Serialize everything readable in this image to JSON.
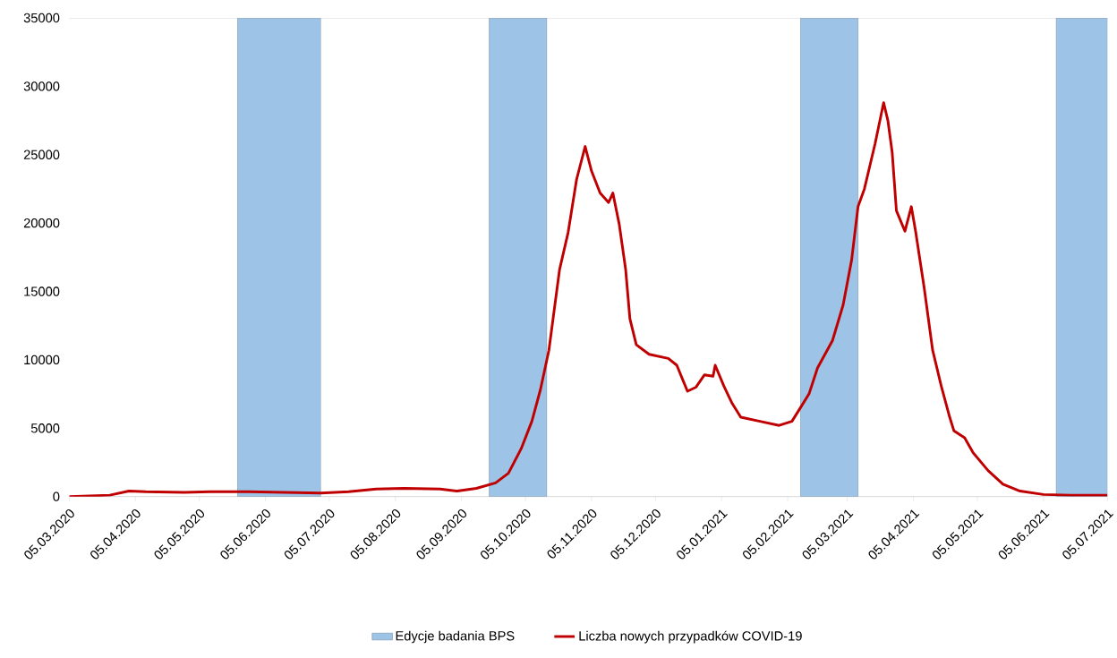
{
  "chart_data": {
    "type": "line",
    "xlim": [
      "2020-03-05",
      "2021-07-05"
    ],
    "ylim": [
      0,
      35000
    ],
    "xticks": [
      {
        "value": "2020-03-05",
        "label": "05.03.2020"
      },
      {
        "value": "2020-04-05",
        "label": "05.04.2020"
      },
      {
        "value": "2020-05-05",
        "label": "05.05.2020"
      },
      {
        "value": "2020-06-05",
        "label": "05.06.2020"
      },
      {
        "value": "2020-07-05",
        "label": "05.07.2020"
      },
      {
        "value": "2020-08-05",
        "label": "05.08.2020"
      },
      {
        "value": "2020-09-05",
        "label": "05.09.2020"
      },
      {
        "value": "2020-10-05",
        "label": "05.10.2020"
      },
      {
        "value": "2020-11-05",
        "label": "05.11.2020"
      },
      {
        "value": "2020-12-05",
        "label": "05.12.2020"
      },
      {
        "value": "2021-01-05",
        "label": "05.01.2021"
      },
      {
        "value": "2021-02-05",
        "label": "05.02.2021"
      },
      {
        "value": "2021-03-05",
        "label": "05.03.2021"
      },
      {
        "value": "2021-04-05",
        "label": "05.04.2021"
      },
      {
        "value": "2021-05-05",
        "label": "05.05.2021"
      },
      {
        "value": "2021-06-05",
        "label": "05.06.2021"
      },
      {
        "value": "2021-07-05",
        "label": "05.07.2021"
      }
    ],
    "yticks": [
      0,
      5000,
      10000,
      15000,
      20000,
      25000,
      30000,
      35000
    ],
    "bands": [
      {
        "axis": "x",
        "from": "2020-05-23",
        "to": "2020-07-01",
        "label": "Edycje badania BPS",
        "color": "#9dc3e6"
      },
      {
        "axis": "x",
        "from": "2020-09-18",
        "to": "2020-10-15",
        "color": "#9dc3e6"
      },
      {
        "axis": "x",
        "from": "2021-02-11",
        "to": "2021-03-10",
        "color": "#9dc3e6"
      },
      {
        "axis": "x",
        "from": "2021-06-11",
        "to": "2021-07-05",
        "color": "#9dc3e6"
      }
    ],
    "series": [
      {
        "name": "Liczba nowych przypadków COVID-19",
        "color": "#c00000",
        "x": [
          "2020-03-05",
          "2020-03-24",
          "2020-04-02",
          "2020-04-10",
          "2020-04-28",
          "2020-05-10",
          "2020-05-28",
          "2020-06-14",
          "2020-07-01",
          "2020-07-14",
          "2020-07-27",
          "2020-08-09",
          "2020-08-26",
          "2020-09-03",
          "2020-09-12",
          "2020-09-21",
          "2020-09-27",
          "2020-10-03",
          "2020-10-08",
          "2020-10-12",
          "2020-10-16",
          "2020-10-21",
          "2020-10-25",
          "2020-10-29",
          "2020-11-02",
          "2020-11-05",
          "2020-11-09",
          "2020-11-13",
          "2020-11-15",
          "2020-11-18",
          "2020-11-21",
          "2020-11-23",
          "2020-11-26",
          "2020-12-02",
          "2020-12-11",
          "2020-12-15",
          "2020-12-20",
          "2020-12-24",
          "2020-12-28",
          "2021-01-01",
          "2021-01-02",
          "2021-01-06",
          "2021-01-10",
          "2021-01-14",
          "2021-01-23",
          "2021-02-01",
          "2021-02-07",
          "2021-02-11",
          "2021-02-15",
          "2021-02-19",
          "2021-02-26",
          "2021-03-03",
          "2021-03-07",
          "2021-03-10",
          "2021-03-13",
          "2021-03-18",
          "2021-03-22",
          "2021-03-24",
          "2021-03-26",
          "2021-03-28",
          "2021-04-01",
          "2021-04-04",
          "2021-04-06",
          "2021-04-10",
          "2021-04-14",
          "2021-04-18",
          "2021-04-22",
          "2021-04-24",
          "2021-04-29",
          "2021-05-03",
          "2021-05-10",
          "2021-05-17",
          "2021-05-25",
          "2021-06-05",
          "2021-06-18",
          "2021-07-05"
        ],
        "values": [
          0,
          100,
          400,
          350,
          300,
          350,
          350,
          300,
          250,
          350,
          550,
          600,
          550,
          400,
          600,
          1000,
          1700,
          3500,
          5500,
          7800,
          10700,
          16600,
          19300,
          23200,
          25600,
          23800,
          22200,
          21500,
          22200,
          19900,
          16600,
          13000,
          11100,
          10400,
          10100,
          9600,
          7700,
          8000,
          8900,
          8800,
          9600,
          8100,
          6800,
          5800,
          5500,
          5200,
          5500,
          6500,
          7500,
          9400,
          11400,
          14000,
          17300,
          21200,
          22500,
          25800,
          28800,
          27500,
          25200,
          20900,
          19400,
          21200,
          19400,
          15300,
          10700,
          8100,
          5800,
          4800,
          4300,
          3200,
          1900,
          900,
          400,
          150,
          100,
          100
        ]
      }
    ],
    "legend": "bottom",
    "line_style": "solid",
    "marker": "none",
    "grid": false
  }
}
